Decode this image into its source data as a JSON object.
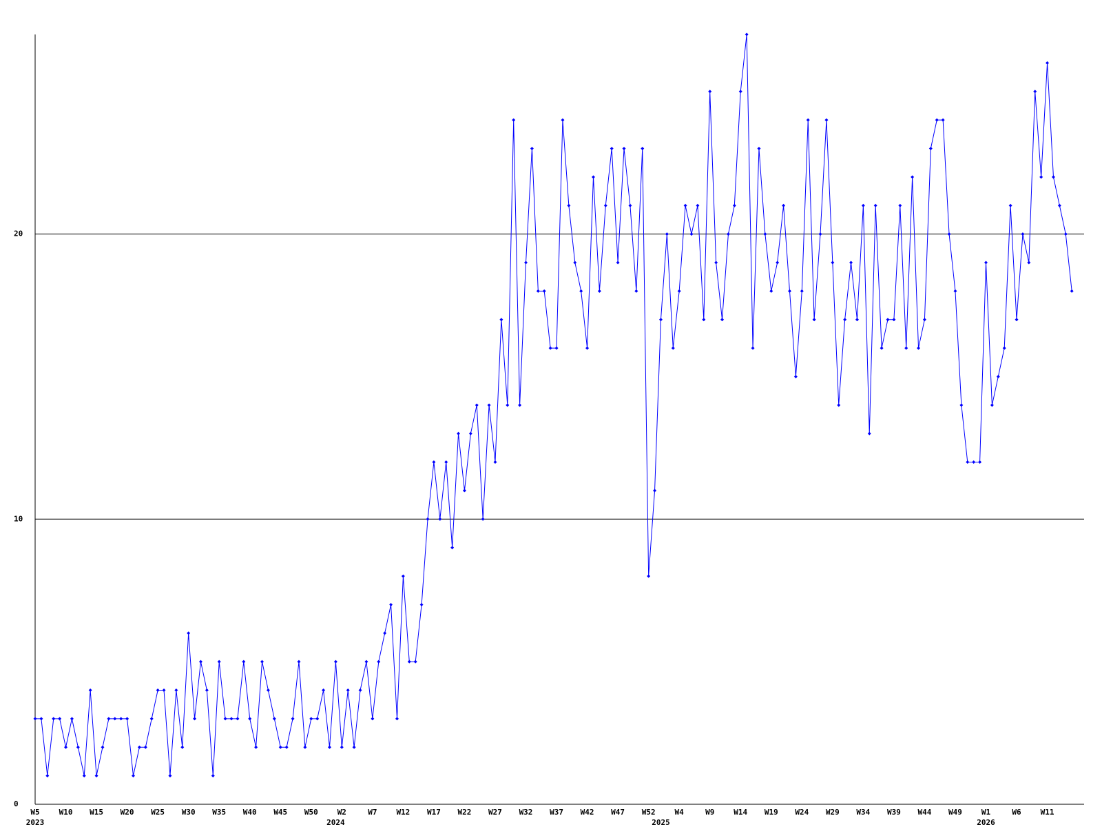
{
  "chart_data": {
    "type": "line",
    "color": "#0000ff",
    "grid": true,
    "ylim": [
      0,
      27
    ],
    "yticks": [
      0,
      10,
      20
    ],
    "categories": [
      "W5",
      null,
      null,
      null,
      null,
      "W10",
      null,
      null,
      null,
      null,
      "W15",
      null,
      null,
      null,
      null,
      "W20",
      null,
      null,
      null,
      null,
      "W25",
      null,
      null,
      null,
      null,
      "W30",
      null,
      null,
      null,
      null,
      "W35",
      null,
      null,
      null,
      null,
      "W40",
      null,
      null,
      null,
      null,
      "W45",
      null,
      null,
      null,
      null,
      "W50",
      null,
      null,
      null,
      null,
      "W2",
      null,
      null,
      null,
      null,
      "W7",
      null,
      null,
      null,
      null,
      "W12",
      null,
      null,
      null,
      null,
      "W17",
      null,
      null,
      null,
      null,
      "W22",
      null,
      null,
      null,
      null,
      "W27",
      null,
      null,
      null,
      null,
      "W32",
      null,
      null,
      null,
      null,
      "W37",
      null,
      null,
      null,
      null,
      "W42",
      null,
      null,
      null,
      null,
      "W47",
      null,
      null,
      null,
      null,
      "W52",
      null,
      null,
      null,
      null,
      "W4",
      null,
      null,
      null,
      null,
      "W9",
      null,
      null,
      null,
      null,
      "W14",
      null,
      null,
      null,
      null,
      "W19",
      null,
      null,
      null,
      null,
      "W24",
      null,
      null,
      null,
      null,
      "W29",
      null,
      null,
      null,
      null,
      "W34",
      null,
      null,
      null,
      null,
      "W39",
      null,
      null,
      null,
      null,
      "W44",
      null,
      null,
      null,
      null,
      "W49",
      null,
      null,
      null,
      null,
      "W1",
      null,
      null,
      null,
      null,
      "W6",
      null,
      null,
      null,
      null,
      "W11",
      null,
      null,
      null,
      null
    ],
    "year_labels": [
      "2023",
      null,
      null,
      null,
      null,
      null,
      null,
      null,
      null,
      null,
      null,
      null,
      null,
      null,
      null,
      null,
      null,
      null,
      null,
      null,
      null,
      null,
      null,
      null,
      null,
      null,
      null,
      null,
      null,
      null,
      null,
      null,
      null,
      null,
      null,
      null,
      null,
      null,
      null,
      null,
      null,
      null,
      null,
      null,
      null,
      null,
      null,
      null,
      null,
      "2024",
      null,
      null,
      null,
      null,
      null,
      null,
      null,
      null,
      null,
      null,
      null,
      null,
      null,
      null,
      null,
      null,
      null,
      null,
      null,
      null,
      null,
      null,
      null,
      null,
      null,
      null,
      null,
      null,
      null,
      null,
      null,
      null,
      null,
      null,
      null,
      null,
      null,
      null,
      null,
      null,
      null,
      null,
      null,
      null,
      null,
      null,
      null,
      null,
      null,
      null,
      null,
      null,
      "2025",
      null,
      null,
      null,
      null,
      null,
      null,
      null,
      null,
      null,
      null,
      null,
      null,
      null,
      null,
      null,
      null,
      null,
      null,
      null,
      null,
      null,
      null,
      null,
      null,
      null,
      null,
      null,
      null,
      null,
      null,
      null,
      null,
      null,
      null,
      null,
      null,
      null,
      null,
      null,
      null,
      null,
      null,
      null,
      null,
      null,
      null,
      null,
      null,
      null,
      null,
      null,
      null,
      "2026",
      null,
      null,
      null,
      null,
      null,
      null,
      null,
      null,
      null,
      null,
      null,
      null,
      null,
      null
    ],
    "values": [
      3,
      3,
      1,
      3,
      3,
      2,
      3,
      2,
      1,
      4,
      1,
      2,
      3,
      3,
      3,
      3,
      1,
      2,
      2,
      3,
      4,
      4,
      1,
      4,
      2,
      6,
      3,
      5,
      4,
      1,
      5,
      3,
      3,
      3,
      5,
      3,
      2,
      5,
      4,
      3,
      2,
      2,
      3,
      5,
      2,
      3,
      3,
      4,
      2,
      5,
      2,
      4,
      2,
      4,
      5,
      3,
      5,
      6,
      7,
      3,
      8,
      5,
      5,
      7,
      10,
      12,
      10,
      12,
      9,
      13,
      11,
      13,
      14,
      10,
      14,
      12,
      17,
      14,
      24,
      14,
      19,
      23,
      18,
      18,
      16,
      16,
      24,
      21,
      19,
      18,
      16,
      22,
      18,
      21,
      23,
      19,
      23,
      21,
      18,
      23,
      8,
      11,
      17,
      20,
      16,
      18,
      21,
      20,
      21,
      17,
      25,
      19,
      17,
      20,
      21,
      25,
      27,
      16,
      23,
      20,
      18,
      19,
      21,
      18,
      15,
      18,
      24,
      17,
      20,
      24,
      19,
      14,
      17,
      19,
      17,
      21,
      13,
      21,
      16,
      17,
      17,
      21,
      16,
      22,
      16,
      17,
      23,
      24,
      24,
      20,
      18,
      14,
      12,
      12,
      12,
      19,
      14,
      15,
      16,
      21,
      17,
      20,
      19,
      25,
      22,
      26,
      22,
      21,
      20,
      18
    ]
  }
}
